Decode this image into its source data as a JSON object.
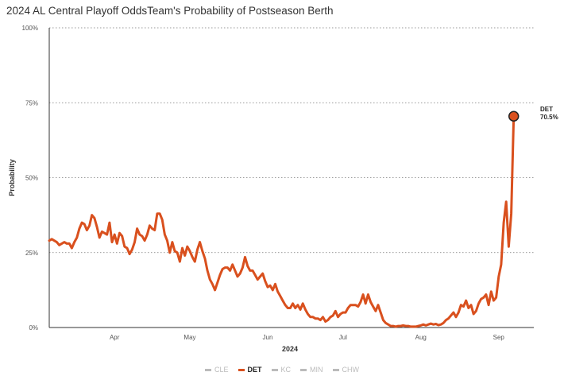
{
  "title": "2024 AL Central Playoff OddsTeam's Probability of Postseason Berth",
  "colors": {
    "accent": "#d9501e",
    "inactive": "#bbbbbb"
  },
  "chart_data": {
    "type": "line",
    "title": "2024 AL Central Playoff OddsTeam's Probability of Postseason Berth",
    "xlabel": "2024",
    "ylabel": "Probability",
    "x_ticks": [
      "Apr",
      "May",
      "Jun",
      "Jul",
      "Aug",
      "Sep"
    ],
    "y_ticks": [
      "0%",
      "25%",
      "50%",
      "75%",
      "100%"
    ],
    "xlim": [
      "2024-03-20",
      "2024-09-29"
    ],
    "ylim": [
      0,
      100
    ],
    "grid": true,
    "legend": "bottom",
    "legend_entries": [
      "CLE",
      "DET",
      "KC",
      "MIN",
      "CHW"
    ],
    "active_series": "DET",
    "end_label": {
      "team": "DET",
      "value": "70.5%"
    },
    "series": [
      {
        "name": "DET",
        "color": "#d9501e",
        "points": [
          [
            "2024-03-20",
            29
          ],
          [
            "2024-03-21",
            29.5
          ],
          [
            "2024-03-22",
            29
          ],
          [
            "2024-03-23",
            28.5
          ],
          [
            "2024-03-24",
            27.5
          ],
          [
            "2024-03-25",
            28
          ],
          [
            "2024-03-26",
            28.5
          ],
          [
            "2024-03-27",
            28
          ],
          [
            "2024-03-28",
            28
          ],
          [
            "2024-03-29",
            26.5
          ],
          [
            "2024-03-30",
            28.5
          ],
          [
            "2024-03-31",
            30
          ],
          [
            "2024-04-01",
            33
          ],
          [
            "2024-04-02",
            35
          ],
          [
            "2024-04-03",
            34.5
          ],
          [
            "2024-04-04",
            32.5
          ],
          [
            "2024-04-05",
            34
          ],
          [
            "2024-04-06",
            37.5
          ],
          [
            "2024-04-07",
            36.5
          ],
          [
            "2024-04-08",
            33.5
          ],
          [
            "2024-04-09",
            30
          ],
          [
            "2024-04-10",
            32
          ],
          [
            "2024-04-11",
            31.5
          ],
          [
            "2024-04-12",
            31
          ],
          [
            "2024-04-13",
            35
          ],
          [
            "2024-04-14",
            28.5
          ],
          [
            "2024-04-15",
            31
          ],
          [
            "2024-04-16",
            28
          ],
          [
            "2024-04-17",
            31.5
          ],
          [
            "2024-04-18",
            30.5
          ],
          [
            "2024-04-19",
            27
          ],
          [
            "2024-04-20",
            26.5
          ],
          [
            "2024-04-21",
            24.5
          ],
          [
            "2024-04-22",
            26
          ],
          [
            "2024-04-23",
            28.5
          ],
          [
            "2024-04-24",
            33
          ],
          [
            "2024-04-25",
            31
          ],
          [
            "2024-04-26",
            30.5
          ],
          [
            "2024-04-27",
            29
          ],
          [
            "2024-04-28",
            31
          ],
          [
            "2024-04-29",
            34
          ],
          [
            "2024-04-30",
            33
          ],
          [
            "2024-05-01",
            32.5
          ],
          [
            "2024-05-02",
            38
          ],
          [
            "2024-05-03",
            38
          ],
          [
            "2024-05-04",
            36
          ],
          [
            "2024-05-05",
            31
          ],
          [
            "2024-05-06",
            29
          ],
          [
            "2024-05-07",
            25
          ],
          [
            "2024-05-08",
            28.5
          ],
          [
            "2024-05-09",
            25.5
          ],
          [
            "2024-05-10",
            25
          ],
          [
            "2024-05-11",
            22
          ],
          [
            "2024-05-12",
            26.5
          ],
          [
            "2024-05-13",
            24
          ],
          [
            "2024-05-14",
            27
          ],
          [
            "2024-05-15",
            25.5
          ],
          [
            "2024-05-16",
            23.5
          ],
          [
            "2024-05-17",
            22
          ],
          [
            "2024-05-18",
            26
          ],
          [
            "2024-05-19",
            28.5
          ],
          [
            "2024-05-20",
            25.5
          ],
          [
            "2024-05-21",
            23
          ],
          [
            "2024-05-22",
            19
          ],
          [
            "2024-05-23",
            16
          ],
          [
            "2024-05-24",
            14.5
          ],
          [
            "2024-05-25",
            12.5
          ],
          [
            "2024-05-26",
            15
          ],
          [
            "2024-05-27",
            17.5
          ],
          [
            "2024-05-28",
            19.5
          ],
          [
            "2024-05-29",
            20
          ],
          [
            "2024-05-30",
            20
          ],
          [
            "2024-05-31",
            19
          ],
          [
            "2024-06-01",
            21
          ],
          [
            "2024-06-02",
            19
          ],
          [
            "2024-06-03",
            17
          ],
          [
            "2024-06-04",
            18
          ],
          [
            "2024-06-05",
            20
          ],
          [
            "2024-06-06",
            23.5
          ],
          [
            "2024-06-07",
            20.5
          ],
          [
            "2024-06-08",
            19
          ],
          [
            "2024-06-09",
            19
          ],
          [
            "2024-06-10",
            17.5
          ],
          [
            "2024-06-11",
            16
          ],
          [
            "2024-06-12",
            17
          ],
          [
            "2024-06-13",
            18
          ],
          [
            "2024-06-14",
            15.5
          ],
          [
            "2024-06-15",
            13.5
          ],
          [
            "2024-06-16",
            14
          ],
          [
            "2024-06-17",
            12.5
          ],
          [
            "2024-06-18",
            14.5
          ],
          [
            "2024-06-19",
            12
          ],
          [
            "2024-06-20",
            10.5
          ],
          [
            "2024-06-21",
            9
          ],
          [
            "2024-06-22",
            7.5
          ],
          [
            "2024-06-23",
            6.5
          ],
          [
            "2024-06-24",
            6.5
          ],
          [
            "2024-06-25",
            8
          ],
          [
            "2024-06-26",
            6.5
          ],
          [
            "2024-06-27",
            7.5
          ],
          [
            "2024-06-28",
            6
          ],
          [
            "2024-06-29",
            8
          ],
          [
            "2024-06-30",
            6
          ],
          [
            "2024-07-01",
            4.5
          ],
          [
            "2024-07-02",
            3.5
          ],
          [
            "2024-07-03",
            3.5
          ],
          [
            "2024-07-04",
            3
          ],
          [
            "2024-07-05",
            3
          ],
          [
            "2024-07-06",
            2.5
          ],
          [
            "2024-07-07",
            3.5
          ],
          [
            "2024-07-08",
            2
          ],
          [
            "2024-07-09",
            2.5
          ],
          [
            "2024-07-10",
            3.5
          ],
          [
            "2024-07-11",
            4
          ],
          [
            "2024-07-12",
            5.5
          ],
          [
            "2024-07-13",
            3.5
          ],
          [
            "2024-07-14",
            4.5
          ],
          [
            "2024-07-15",
            5
          ],
          [
            "2024-07-16",
            5
          ],
          [
            "2024-07-17",
            6.5
          ],
          [
            "2024-07-18",
            7.5
          ],
          [
            "2024-07-19",
            7.5
          ],
          [
            "2024-07-20",
            7.5
          ],
          [
            "2024-07-21",
            7
          ],
          [
            "2024-07-22",
            8.5
          ],
          [
            "2024-07-23",
            11
          ],
          [
            "2024-07-24",
            8
          ],
          [
            "2024-07-25",
            11
          ],
          [
            "2024-07-26",
            8.5
          ],
          [
            "2024-07-27",
            7
          ],
          [
            "2024-07-28",
            5.5
          ],
          [
            "2024-07-29",
            7.5
          ],
          [
            "2024-07-30",
            5
          ],
          [
            "2024-07-31",
            2.5
          ],
          [
            "2024-08-01",
            1.5
          ],
          [
            "2024-08-02",
            1
          ],
          [
            "2024-08-03",
            0.5
          ],
          [
            "2024-08-04",
            0.5
          ],
          [
            "2024-08-05",
            0.3
          ],
          [
            "2024-08-06",
            0.5
          ],
          [
            "2024-08-07",
            0.5
          ],
          [
            "2024-08-08",
            0.7
          ],
          [
            "2024-08-09",
            0.5
          ],
          [
            "2024-08-10",
            0.5
          ],
          [
            "2024-08-11",
            0.3
          ],
          [
            "2024-08-12",
            0.3
          ],
          [
            "2024-08-13",
            0.3
          ],
          [
            "2024-08-14",
            0.5
          ],
          [
            "2024-08-15",
            0.7
          ],
          [
            "2024-08-16",
            1
          ],
          [
            "2024-08-17",
            0.7
          ],
          [
            "2024-08-18",
            1
          ],
          [
            "2024-08-19",
            1.3
          ],
          [
            "2024-08-20",
            1
          ],
          [
            "2024-08-21",
            1.2
          ],
          [
            "2024-08-22",
            0.8
          ],
          [
            "2024-08-23",
            1
          ],
          [
            "2024-08-24",
            1.5
          ],
          [
            "2024-08-25",
            2.5
          ],
          [
            "2024-08-26",
            3
          ],
          [
            "2024-08-27",
            4
          ],
          [
            "2024-08-28",
            5
          ],
          [
            "2024-08-29",
            3.5
          ],
          [
            "2024-08-30",
            5
          ],
          [
            "2024-08-31",
            7.5
          ],
          [
            "2024-09-01",
            7
          ],
          [
            "2024-09-02",
            9
          ],
          [
            "2024-09-03",
            6.5
          ],
          [
            "2024-09-04",
            7.5
          ],
          [
            "2024-09-05",
            4.5
          ],
          [
            "2024-09-06",
            5.5
          ],
          [
            "2024-09-07",
            8
          ],
          [
            "2024-09-08",
            9.5
          ],
          [
            "2024-09-09",
            10
          ],
          [
            "2024-09-10",
            11
          ],
          [
            "2024-09-11",
            7.5
          ],
          [
            "2024-09-12",
            12
          ],
          [
            "2024-09-13",
            9
          ],
          [
            "2024-09-14",
            10
          ],
          [
            "2024-09-15",
            17
          ],
          [
            "2024-09-16",
            21
          ],
          [
            "2024-09-17",
            35
          ],
          [
            "2024-09-18",
            42
          ],
          [
            "2024-09-19",
            27
          ],
          [
            "2024-09-20",
            38
          ],
          [
            "2024-09-21",
            70.5
          ]
        ]
      }
    ]
  }
}
